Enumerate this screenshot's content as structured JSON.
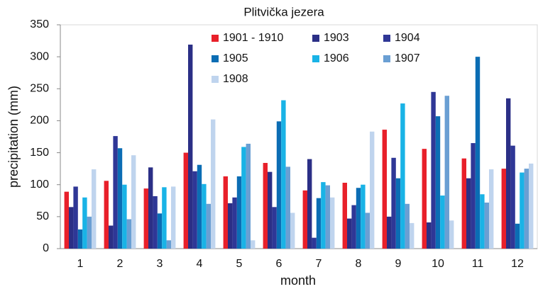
{
  "chart_data": {
    "type": "bar",
    "title": "Plitvička jezera",
    "x_label": "month",
    "y_label": "precipitation (mm)",
    "categories": [
      "1",
      "2",
      "3",
      "4",
      "5",
      "6",
      "7",
      "8",
      "9",
      "10",
      "11",
      "12"
    ],
    "series": [
      {
        "name": "1901 - 1910",
        "color": "#e8202a",
        "values": [
          89,
          106,
          94,
          150,
          113,
          134,
          91,
          103,
          186,
          156,
          141,
          125
        ]
      },
      {
        "name": "1903",
        "color": "#2b2f86",
        "values": [
          65,
          36,
          127,
          319,
          71,
          120,
          140,
          47,
          50,
          41,
          110,
          235
        ]
      },
      {
        "name": "1904",
        "color": "#2f3796",
        "values": [
          97,
          176,
          82,
          121,
          80,
          65,
          17,
          68,
          142,
          245,
          165,
          161
        ]
      },
      {
        "name": "1905",
        "color": "#0b6db4",
        "values": [
          30,
          157,
          55,
          131,
          113,
          199,
          79,
          95,
          110,
          207,
          300,
          39
        ]
      },
      {
        "name": "1906",
        "color": "#19b3e6",
        "values": [
          80,
          100,
          96,
          101,
          159,
          232,
          104,
          100,
          227,
          83,
          85,
          119
        ]
      },
      {
        "name": "1907",
        "color": "#6a9fd3",
        "values": [
          50,
          46,
          13,
          70,
          164,
          128,
          99,
          56,
          70,
          239,
          72,
          125
        ]
      },
      {
        "name": "1908",
        "color": "#bfd4ee",
        "values": [
          124,
          146,
          97,
          202,
          13,
          56,
          80,
          183,
          40,
          44,
          124,
          133
        ]
      }
    ],
    "ylim": [
      0,
      350
    ],
    "yticks": [
      0,
      50,
      100,
      150,
      200,
      250,
      300,
      350
    ],
    "grid": false,
    "legend": "top"
  }
}
